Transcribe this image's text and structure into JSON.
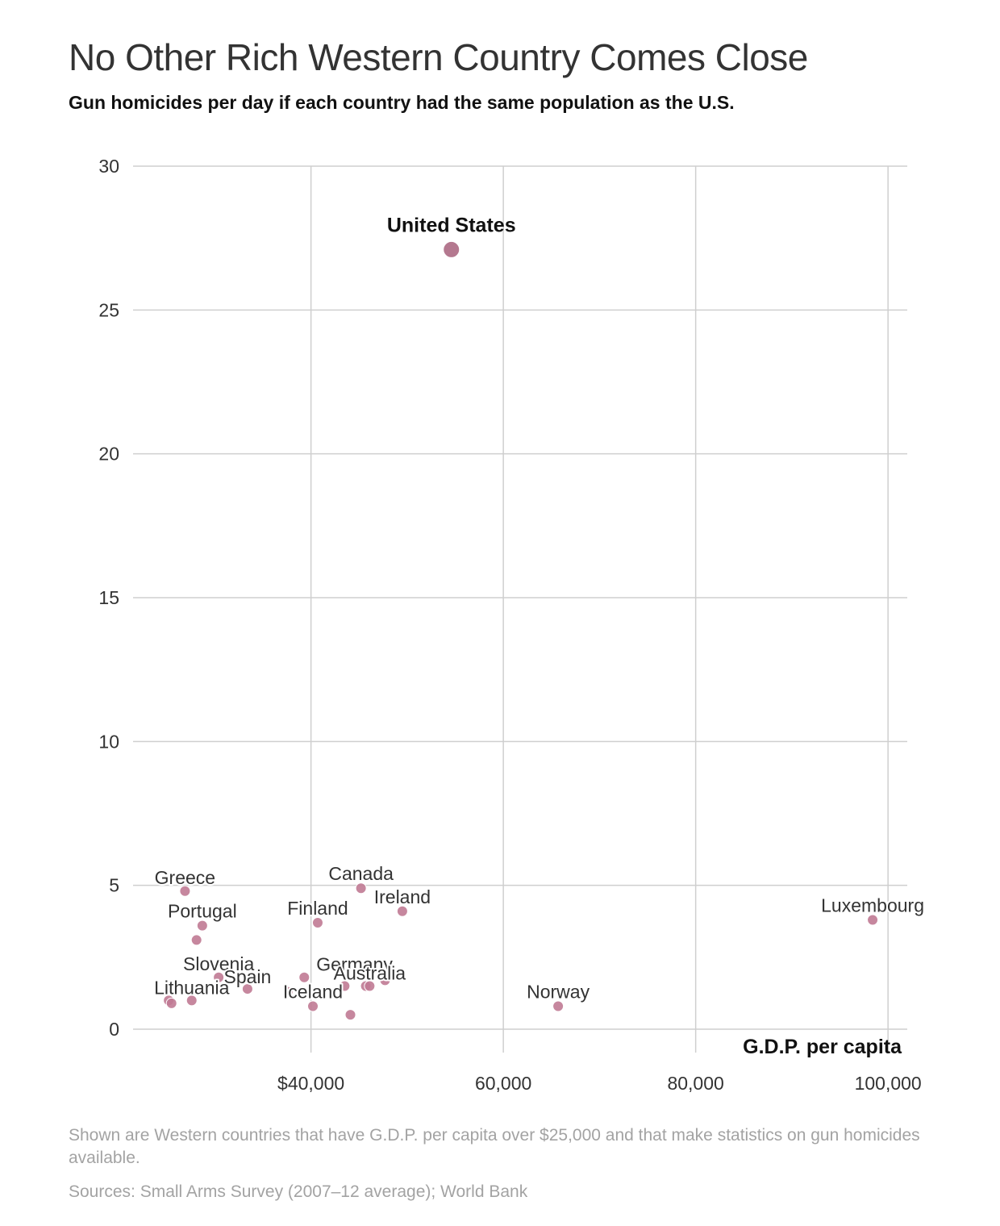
{
  "page": {
    "title": "No Other Rich Western Country Comes Close",
    "subtitle": "Gun homicides per day if each country had the same population as the U.S.",
    "note": "Shown are Western countries that have G.D.P. per capita over $25,000 and that make statistics on gun homicides available.",
    "source": "Sources: Small Arms Survey (2007–12 average); World Bank"
  },
  "chart_data": {
    "type": "scatter",
    "title": "No Other Rich Western Country Comes Close",
    "subtitle": "Gun homicides per day if each country had the same population as the U.S.",
    "xlabel": "G.D.P. per capita",
    "ylabel": "",
    "xlim": [
      21500,
      102000
    ],
    "ylim": [
      0,
      30
    ],
    "x_ticks": [
      40000,
      60000,
      80000,
      100000
    ],
    "x_tick_labels": [
      "$40,000",
      "60,000",
      "80,000",
      "100,000"
    ],
    "y_ticks": [
      0,
      5,
      10,
      15,
      20,
      25,
      30
    ],
    "y_tick_labels": [
      "0",
      "5",
      "10",
      "15",
      "20",
      "25",
      "30"
    ],
    "grid": true,
    "highlight_color": "#b07189",
    "point_color": "#c07a94",
    "points": [
      {
        "label": "United States",
        "x": 54600,
        "y": 27.1,
        "highlight": true
      },
      {
        "label": "Canada",
        "x": 45200,
        "y": 4.9
      },
      {
        "label": "Greece",
        "x": 26900,
        "y": 4.8
      },
      {
        "label": "Ireland",
        "x": 49500,
        "y": 4.1
      },
      {
        "label": "Luxembourg",
        "x": 98400,
        "y": 3.8
      },
      {
        "label": "Finland",
        "x": 40700,
        "y": 3.7
      },
      {
        "label": "Portugal",
        "x": 28700,
        "y": 3.6
      },
      {
        "label": "",
        "x": 28100,
        "y": 3.1
      },
      {
        "label": "Slovenia",
        "x": 30400,
        "y": 1.8
      },
      {
        "label": "",
        "x": 39300,
        "y": 1.8
      },
      {
        "label": "",
        "x": 47700,
        "y": 1.7
      },
      {
        "label": "Germany",
        "x": 45700,
        "y": 1.5
      },
      {
        "label": "",
        "x": 43500,
        "y": 1.5
      },
      {
        "label": "Australia",
        "x": 46100,
        "y": 1.5
      },
      {
        "label": "Spain",
        "x": 33400,
        "y": 1.4
      },
      {
        "label": "",
        "x": 37600,
        "y": 1.3
      },
      {
        "label": "Lithuania",
        "x": 27600,
        "y": 1.0
      },
      {
        "label": "",
        "x": 25200,
        "y": 1.0
      },
      {
        "label": "",
        "x": 25500,
        "y": 0.9
      },
      {
        "label": "Iceland",
        "x": 40200,
        "y": 0.8
      },
      {
        "label": "Norway",
        "x": 65700,
        "y": 0.8
      },
      {
        "label": "",
        "x": 44100,
        "y": 0.5
      }
    ]
  }
}
